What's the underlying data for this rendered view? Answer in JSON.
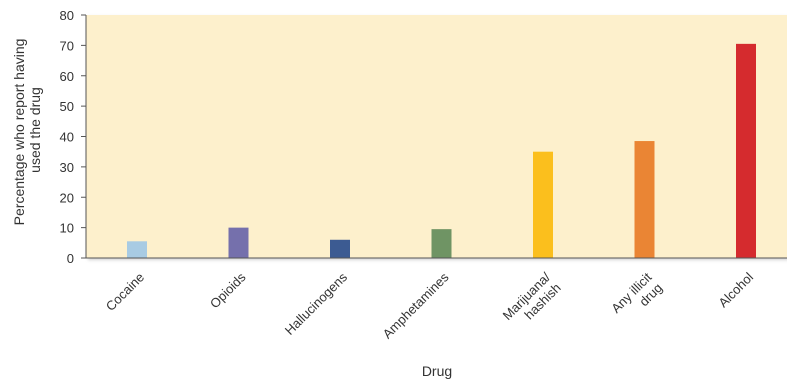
{
  "chart_data": {
    "type": "bar",
    "title": "",
    "xlabel": "Drug",
    "ylabel": [
      "Percentage who report having",
      "used the drug"
    ],
    "ylim": [
      0,
      80
    ],
    "yticks": [
      0,
      10,
      20,
      30,
      40,
      50,
      60,
      70,
      80
    ],
    "grid": false,
    "categories": [
      [
        "Cocaine"
      ],
      [
        "Opioids"
      ],
      [
        "Hallucinogens"
      ],
      [
        "Amphetamines"
      ],
      [
        "Marijuana/",
        "hashish"
      ],
      [
        "Any illicit",
        "drug"
      ],
      [
        "Alcohol"
      ]
    ],
    "values": [
      5.5,
      10,
      6,
      9.5,
      35,
      38.5,
      70.5
    ],
    "colors": [
      "#a8cbe3",
      "#7570ac",
      "#3c5b92",
      "#6f9464",
      "#fbbf1d",
      "#ea8534",
      "#d52b2e"
    ],
    "plot_background": "#fdf0cc"
  }
}
